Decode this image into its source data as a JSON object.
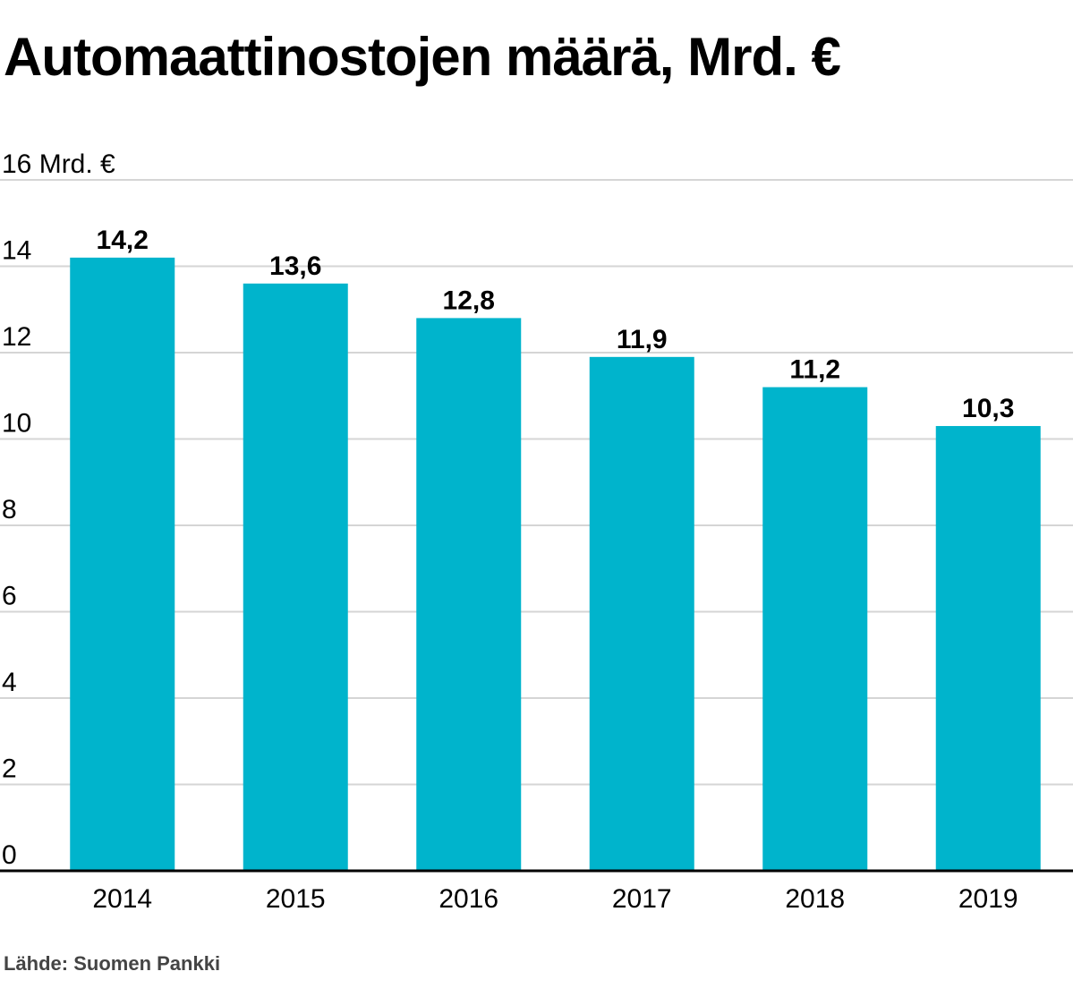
{
  "title": "Automaattinostojen määrä, Mrd. €",
  "source": "Lähde: Suomen Pankki",
  "chart_data": {
    "type": "bar",
    "title": "Automaattinostojen määrä, Mrd. €",
    "categories": [
      "2014",
      "2015",
      "2016",
      "2017",
      "2018",
      "2019"
    ],
    "values": [
      14.2,
      13.6,
      12.8,
      11.9,
      11.2,
      10.3
    ],
    "value_labels": [
      "14,2",
      "13,6",
      "12,8",
      "11,9",
      "11,2",
      "10,3"
    ],
    "y_ticks": [
      0,
      2,
      4,
      6,
      8,
      10,
      12,
      14,
      16
    ],
    "y_tick_labels": [
      "0",
      "2",
      "4",
      "6",
      "8",
      "10",
      "12",
      "14",
      "16"
    ],
    "y_unit": "Mrd. €",
    "ylim": [
      0,
      16
    ],
    "xlabel": "",
    "ylabel": "",
    "grid": true,
    "legend": "none",
    "bar_color": "#00B4CC",
    "grid_color": "#D5D5D5",
    "axis_color": "#000000"
  }
}
